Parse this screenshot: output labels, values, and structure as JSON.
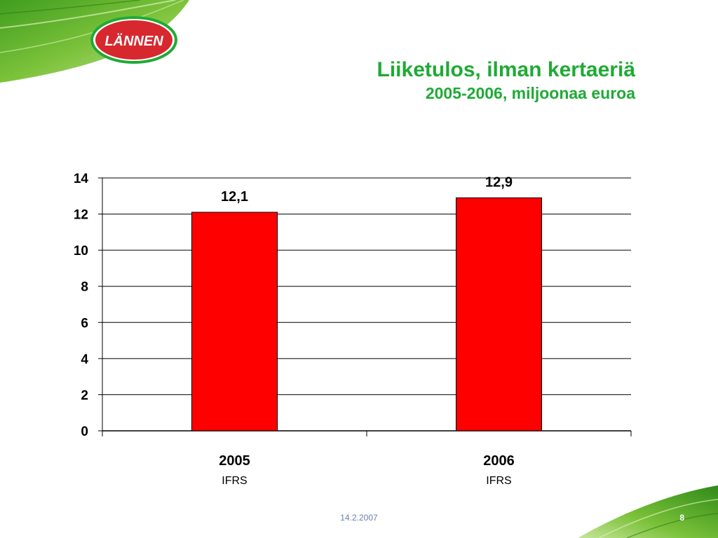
{
  "brand": {
    "logo_text": "LÄNNEN",
    "color_green": "#1faa35",
    "logo_red": "#d7282f"
  },
  "header": {
    "title": "Liiketulos, ilman kertaeriä",
    "subtitle": "2005-2006, miljoonaa euroa"
  },
  "chart_data": {
    "type": "bar",
    "categories": [
      "2005",
      "2006"
    ],
    "category_sublabels": [
      "IFRS",
      "IFRS"
    ],
    "values": [
      12.1,
      12.9
    ],
    "value_labels": [
      "12,1",
      "12,9"
    ],
    "yticks": [
      "0",
      "2",
      "4",
      "6",
      "8",
      "10",
      "12",
      "14"
    ],
    "ylim": [
      0,
      14
    ],
    "grid": true,
    "bar_color": "#ff0000",
    "legend": "none"
  },
  "footer": {
    "date": "14.2.2007",
    "page": "8"
  }
}
